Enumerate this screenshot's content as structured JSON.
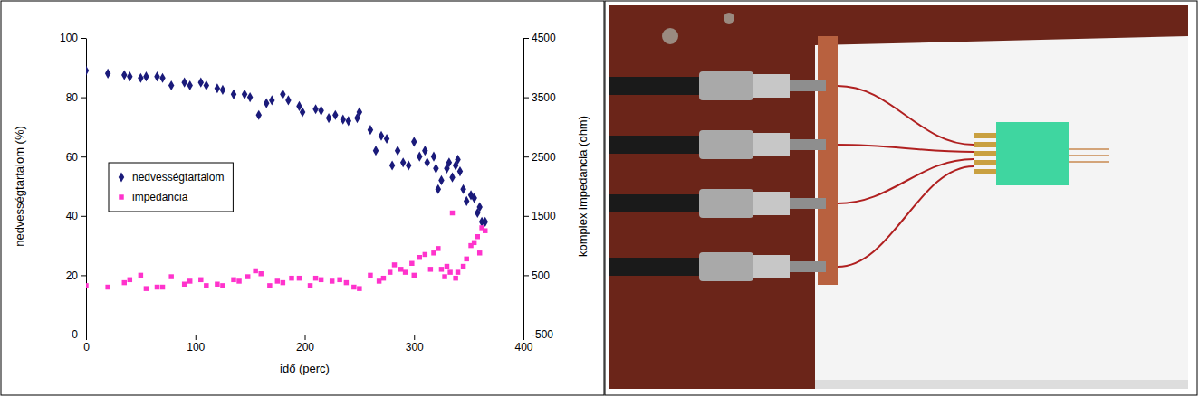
{
  "chart_data": {
    "type": "scatter",
    "x_label": "idő (perc)",
    "y_label": "nedvességtartalom (%)",
    "y2_label": "komplex impedancia (ohm)",
    "xlim": [
      0,
      400
    ],
    "xticks": [
      0,
      100,
      200,
      300,
      400
    ],
    "ylim": [
      0,
      100
    ],
    "yticks": [
      0,
      20,
      40,
      60,
      80,
      100
    ],
    "y2lim": [
      -500,
      4500
    ],
    "y2ticks": [
      -500,
      500,
      1500,
      2500,
      3500,
      4500
    ],
    "grid": false,
    "legend": "left",
    "series": [
      {
        "name": "nedvességtartalom",
        "color": "#1a1a7a",
        "marker": "diamond",
        "x": [
          0,
          20,
          35,
          40,
          50,
          55,
          65,
          70,
          78,
          90,
          95,
          105,
          110,
          120,
          125,
          135,
          145,
          150,
          158,
          165,
          170,
          180,
          185,
          195,
          198,
          210,
          215,
          222,
          228,
          235,
          240,
          248,
          250,
          260,
          265,
          270,
          275,
          280,
          285,
          290,
          295,
          300,
          305,
          310,
          312,
          318,
          320,
          322,
          325,
          330,
          332,
          335,
          338,
          340,
          342,
          345,
          348,
          352,
          355,
          358,
          360,
          362,
          365
        ],
        "values": [
          89,
          88,
          87.5,
          87,
          86.5,
          87,
          87,
          86.5,
          84,
          85,
          84,
          85,
          84,
          83,
          82.5,
          81,
          81,
          80,
          74,
          78,
          79,
          81,
          79,
          77,
          75,
          76,
          75.5,
          73,
          74,
          72.5,
          72,
          73,
          75,
          69,
          62,
          67,
          66,
          57,
          62,
          58,
          57,
          65,
          60,
          62,
          58,
          60,
          56,
          49,
          52,
          56,
          58,
          53,
          57,
          59,
          55,
          49,
          45,
          47,
          46,
          41,
          43,
          38,
          38
        ]
      },
      {
        "name": "impedancia",
        "color": "#ff33cc",
        "marker": "square",
        "axis": "y2",
        "x": [
          0,
          20,
          35,
          40,
          50,
          55,
          65,
          70,
          78,
          90,
          95,
          105,
          110,
          120,
          125,
          135,
          140,
          148,
          155,
          160,
          168,
          175,
          180,
          188,
          195,
          205,
          210,
          215,
          225,
          232,
          238,
          245,
          250,
          260,
          268,
          272,
          278,
          282,
          288,
          292,
          298,
          300,
          305,
          310,
          315,
          318,
          322,
          325,
          328,
          330,
          333,
          335,
          338,
          340,
          345,
          348,
          352,
          355,
          358,
          360,
          362,
          365
        ],
        "values": [
          325,
          300,
          375,
          425,
          500,
          275,
          300,
          300,
          475,
          350,
          400,
          425,
          325,
          350,
          325,
          425,
          400,
          475,
          575,
          525,
          325,
          400,
          375,
          450,
          450,
          325,
          450,
          425,
          400,
          425,
          375,
          300,
          275,
          500,
          400,
          450,
          550,
          675,
          600,
          550,
          700,
          500,
          800,
          850,
          600,
          875,
          950,
          600,
          475,
          650,
          550,
          1550,
          450,
          550,
          650,
          775,
          1000,
          1050,
          1150,
          875,
          1300,
          1250
        ]
      }
    ]
  }
}
